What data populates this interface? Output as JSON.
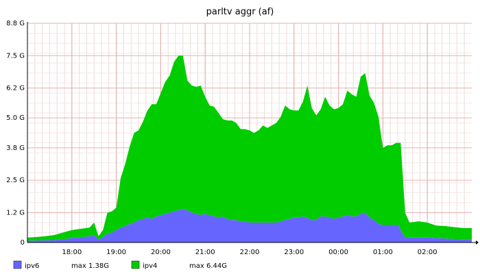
{
  "chart_data": {
    "type": "area",
    "title": "parltv aggr (af)",
    "stacked": true,
    "grid": true,
    "legend_position": "bottom",
    "ylim": [
      0,
      8.8
    ],
    "yticks": [
      0,
      1.2,
      2.5,
      3.8,
      5.0,
      6.2,
      7.5,
      8.8
    ],
    "ytick_labels": [
      "0",
      "1.2 G",
      "2.5 G",
      "3.8 G",
      "5.0 G",
      "6.2 G",
      "7.5 G",
      "8.8 G"
    ],
    "xlim": [
      17.0,
      27.0
    ],
    "xticks": [
      18,
      19,
      20,
      21,
      22,
      23,
      24,
      25,
      26
    ],
    "xtick_labels": [
      "18:00",
      "19:00",
      "20:00",
      "21:00",
      "22:00",
      "23:00",
      "00:00",
      "01:00",
      "02:00"
    ],
    "x": [
      17.0,
      17.2,
      17.4,
      17.6,
      17.8,
      18.0,
      18.2,
      18.4,
      18.5,
      18.6,
      18.7,
      18.8,
      18.9,
      19.0,
      19.1,
      19.2,
      19.3,
      19.4,
      19.5,
      19.6,
      19.7,
      19.8,
      19.9,
      20.0,
      20.1,
      20.2,
      20.3,
      20.4,
      20.5,
      20.6,
      20.7,
      20.8,
      20.9,
      21.0,
      21.1,
      21.2,
      21.3,
      21.4,
      21.5,
      21.6,
      21.7,
      21.8,
      21.9,
      22.0,
      22.1,
      22.2,
      22.3,
      22.4,
      22.5,
      22.6,
      22.7,
      22.8,
      22.9,
      23.0,
      23.1,
      23.2,
      23.3,
      23.4,
      23.5,
      23.6,
      23.7,
      23.8,
      23.9,
      24.0,
      24.1,
      24.2,
      24.3,
      24.4,
      24.5,
      24.6,
      24.7,
      24.8,
      24.9,
      25.0,
      25.1,
      25.2,
      25.3,
      25.35,
      25.4,
      25.5,
      25.6,
      25.8,
      26.0,
      26.2,
      26.4,
      26.6,
      26.8,
      27.0
    ],
    "series": [
      {
        "name": "ipv6",
        "max_label": "max  1.38G",
        "color": "#6666ff",
        "values": [
          0.07,
          0.08,
          0.09,
          0.1,
          0.13,
          0.18,
          0.22,
          0.25,
          0.3,
          0.12,
          0.22,
          0.35,
          0.4,
          0.5,
          0.6,
          0.65,
          0.75,
          0.8,
          0.9,
          0.95,
          1.0,
          0.95,
          1.05,
          1.1,
          1.15,
          1.2,
          1.25,
          1.3,
          1.35,
          1.3,
          1.2,
          1.15,
          1.1,
          1.15,
          1.1,
          1.05,
          1.0,
          1.05,
          0.95,
          0.9,
          0.9,
          0.85,
          0.85,
          0.8,
          0.8,
          0.8,
          0.8,
          0.8,
          0.8,
          0.8,
          0.85,
          0.9,
          0.95,
          1.0,
          1.0,
          1.05,
          1.0,
          0.9,
          0.9,
          1.05,
          1.05,
          1.0,
          0.95,
          1.0,
          1.05,
          1.1,
          1.05,
          1.05,
          1.15,
          1.2,
          1.0,
          0.9,
          0.75,
          0.7,
          0.7,
          0.7,
          0.7,
          0.7,
          0.5,
          0.2,
          0.2,
          0.2,
          0.2,
          0.18,
          0.16,
          0.14,
          0.13,
          0.13
        ]
      },
      {
        "name": "ipv4",
        "max_label": "max  6.44G",
        "color": "#00cc00",
        "values": [
          0.13,
          0.14,
          0.16,
          0.2,
          0.27,
          0.32,
          0.33,
          0.35,
          0.5,
          0.13,
          0.28,
          0.85,
          0.85,
          0.9,
          2.0,
          2.5,
          3.1,
          3.6,
          3.6,
          3.9,
          4.3,
          4.6,
          4.5,
          4.9,
          5.3,
          5.5,
          6.0,
          6.2,
          6.15,
          5.2,
          5.1,
          5.1,
          5.2,
          4.7,
          4.4,
          4.4,
          4.2,
          3.9,
          3.95,
          4.0,
          3.9,
          3.7,
          3.7,
          3.7,
          3.6,
          3.7,
          3.9,
          3.8,
          3.9,
          4.0,
          4.2,
          4.6,
          4.4,
          4.3,
          4.3,
          4.6,
          5.3,
          4.5,
          4.2,
          4.3,
          4.8,
          4.5,
          4.4,
          4.4,
          4.5,
          5.0,
          4.9,
          4.8,
          5.5,
          5.6,
          4.9,
          4.7,
          4.3,
          3.1,
          3.2,
          3.2,
          3.3,
          3.3,
          3.5,
          1.0,
          0.6,
          0.65,
          0.6,
          0.5,
          0.5,
          0.48,
          0.45,
          0.45
        ]
      }
    ]
  }
}
